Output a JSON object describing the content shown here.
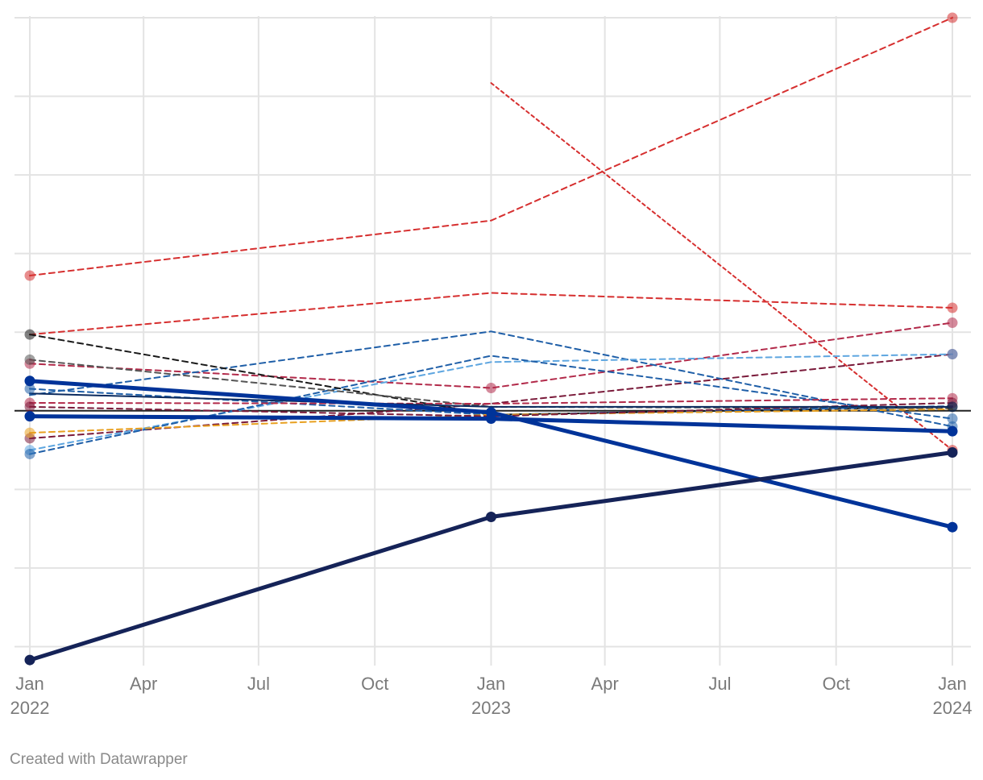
{
  "credit": "Created with Datawrapper",
  "chart_data": {
    "type": "line",
    "title": "",
    "xlabel": "",
    "ylabel": "",
    "grid": true,
    "legend": "none",
    "x_range": [
      "2022-01-01",
      "2024-01-01"
    ],
    "y_range": [
      -3.2,
      5.0
    ],
    "baseline": 0,
    "y_gridlines": [
      -3,
      -2,
      -1,
      1,
      2,
      3,
      4,
      5
    ],
    "x_ticks": [
      {
        "date": "2022-01-01",
        "label": "Jan",
        "year": "2022"
      },
      {
        "date": "2022-04-01",
        "label": "Apr",
        "year": ""
      },
      {
        "date": "2022-07-01",
        "label": "Jul",
        "year": ""
      },
      {
        "date": "2022-10-01",
        "label": "Oct",
        "year": ""
      },
      {
        "date": "2023-01-01",
        "label": "Jan",
        "year": "2023"
      },
      {
        "date": "2023-04-01",
        "label": "Apr",
        "year": ""
      },
      {
        "date": "2023-07-01",
        "label": "Jul",
        "year": ""
      },
      {
        "date": "2023-10-01",
        "label": "Oct",
        "year": ""
      },
      {
        "date": "2024-01-01",
        "label": "Jan",
        "year": "2024"
      }
    ],
    "series": [
      {
        "color": "#d62f2f",
        "style": "dashed",
        "width": 2,
        "dots": [
          true,
          false,
          true
        ],
        "points": [
          [
            "2022-01-01",
            1.72
          ],
          [
            "2023-01-01",
            2.42
          ],
          [
            "2024-01-01",
            5.0
          ]
        ]
      },
      {
        "color": "#d62f2f",
        "style": "dotted",
        "width": 2,
        "dots": [
          false,
          true,
          true
        ],
        "points": [
          [
            "2023-01-01",
            4.17
          ],
          [
            "2024-01-01",
            -0.5
          ]
        ]
      },
      {
        "color": "#d62f2f",
        "style": "dashed",
        "width": 2,
        "dots": [
          false,
          false,
          true
        ],
        "points": [
          [
            "2022-01-01",
            0.97
          ],
          [
            "2023-01-01",
            1.5
          ],
          [
            "2024-01-01",
            1.31
          ]
        ]
      },
      {
        "color": "#b22a4a",
        "style": "dashed",
        "width": 2,
        "dots": [
          true,
          true,
          true
        ],
        "points": [
          [
            "2022-01-01",
            0.6
          ],
          [
            "2023-01-01",
            0.29
          ],
          [
            "2024-01-01",
            1.12
          ]
        ]
      },
      {
        "color": "#7a1a3a",
        "style": "dashed",
        "width": 2,
        "dots": [
          true,
          false,
          true
        ],
        "points": [
          [
            "2022-01-01",
            -0.35
          ],
          [
            "2023-01-01",
            0.09
          ],
          [
            "2024-01-01",
            0.72
          ]
        ]
      },
      {
        "color": "#1f5fa8",
        "style": "dashed",
        "width": 2,
        "dots": [
          false,
          false,
          true
        ],
        "points": [
          [
            "2022-01-01",
            0.2
          ],
          [
            "2023-01-01",
            1.01
          ],
          [
            "2024-01-01",
            -0.2
          ]
        ]
      },
      {
        "color": "#5ea6e0",
        "style": "dashed",
        "width": 2,
        "dots": [
          true,
          false,
          true
        ],
        "points": [
          [
            "2022-01-01",
            -0.5
          ],
          [
            "2023-01-01",
            0.62
          ],
          [
            "2024-01-01",
            0.72
          ]
        ]
      },
      {
        "color": "#1f5fa8",
        "style": "dashed",
        "width": 2,
        "dots": [
          true,
          false,
          true
        ],
        "points": [
          [
            "2022-01-01",
            -0.55
          ],
          [
            "2023-01-01",
            0.7
          ],
          [
            "2024-01-01",
            -0.1
          ]
        ]
      },
      {
        "color": "#1a1a1a",
        "style": "dashed",
        "width": 2,
        "dots": [
          true,
          false,
          true
        ],
        "points": [
          [
            "2022-01-01",
            0.97
          ],
          [
            "2023-01-01",
            -0.05
          ],
          [
            "2024-01-01",
            0.05
          ]
        ]
      },
      {
        "color": "#555555",
        "style": "dashed",
        "width": 2,
        "dots": [
          true,
          false,
          false
        ],
        "points": [
          [
            "2022-01-01",
            0.65
          ],
          [
            "2023-01-01",
            0.05
          ],
          [
            "2024-01-01",
            0.03
          ]
        ]
      },
      {
        "color": "#1f5fa8",
        "style": "dashed",
        "width": 2,
        "dots": [
          true,
          false,
          false
        ],
        "points": [
          [
            "2022-01-01",
            0.28
          ],
          [
            "2023-01-01",
            -0.05
          ],
          [
            "2024-01-01",
            0.06
          ]
        ]
      },
      {
        "color": "#e8a020",
        "style": "dashed",
        "width": 2,
        "dots": [
          true,
          false,
          false
        ],
        "points": [
          [
            "2022-01-01",
            -0.28
          ],
          [
            "2023-01-01",
            -0.05
          ],
          [
            "2024-01-01",
            0.02
          ]
        ]
      },
      {
        "color": "#b22a4a",
        "style": "dashed",
        "width": 2,
        "dots": [
          true,
          false,
          true
        ],
        "points": [
          [
            "2022-01-01",
            0.1
          ],
          [
            "2023-01-01",
            0.09
          ],
          [
            "2024-01-01",
            0.16
          ]
        ]
      },
      {
        "color": "#7a1a3a",
        "style": "dashed",
        "width": 2,
        "dots": [
          true,
          false,
          true
        ],
        "points": [
          [
            "2022-01-01",
            0.05
          ],
          [
            "2023-01-01",
            -0.07
          ],
          [
            "2024-01-01",
            0.1
          ]
        ]
      },
      {
        "color": "#0a2a5e",
        "style": "solid",
        "width": 2,
        "dots": [
          false,
          false,
          true
        ],
        "points": [
          [
            "2022-01-01",
            0.22
          ],
          [
            "2023-01-01",
            0.05
          ],
          [
            "2024-01-01",
            0.05
          ]
        ]
      },
      {
        "color": "#003399",
        "style": "solid",
        "width": 5,
        "dots": [
          true,
          true,
          true
        ],
        "points": [
          [
            "2022-01-01",
            0.38
          ],
          [
            "2023-01-01",
            -0.02
          ],
          [
            "2024-01-01",
            -1.48
          ]
        ]
      },
      {
        "color": "#003399",
        "style": "solid",
        "width": 5,
        "dots": [
          true,
          true,
          true
        ],
        "points": [
          [
            "2022-01-01",
            -0.07
          ],
          [
            "2023-01-01",
            -0.1
          ],
          [
            "2024-01-01",
            -0.26
          ]
        ]
      },
      {
        "color": "#152358",
        "style": "solid",
        "width": 5,
        "dots": [
          true,
          true,
          true
        ],
        "points": [
          [
            "2022-01-01",
            -3.17
          ],
          [
            "2023-01-01",
            -1.35
          ],
          [
            "2024-01-01",
            -0.53
          ]
        ]
      }
    ]
  }
}
